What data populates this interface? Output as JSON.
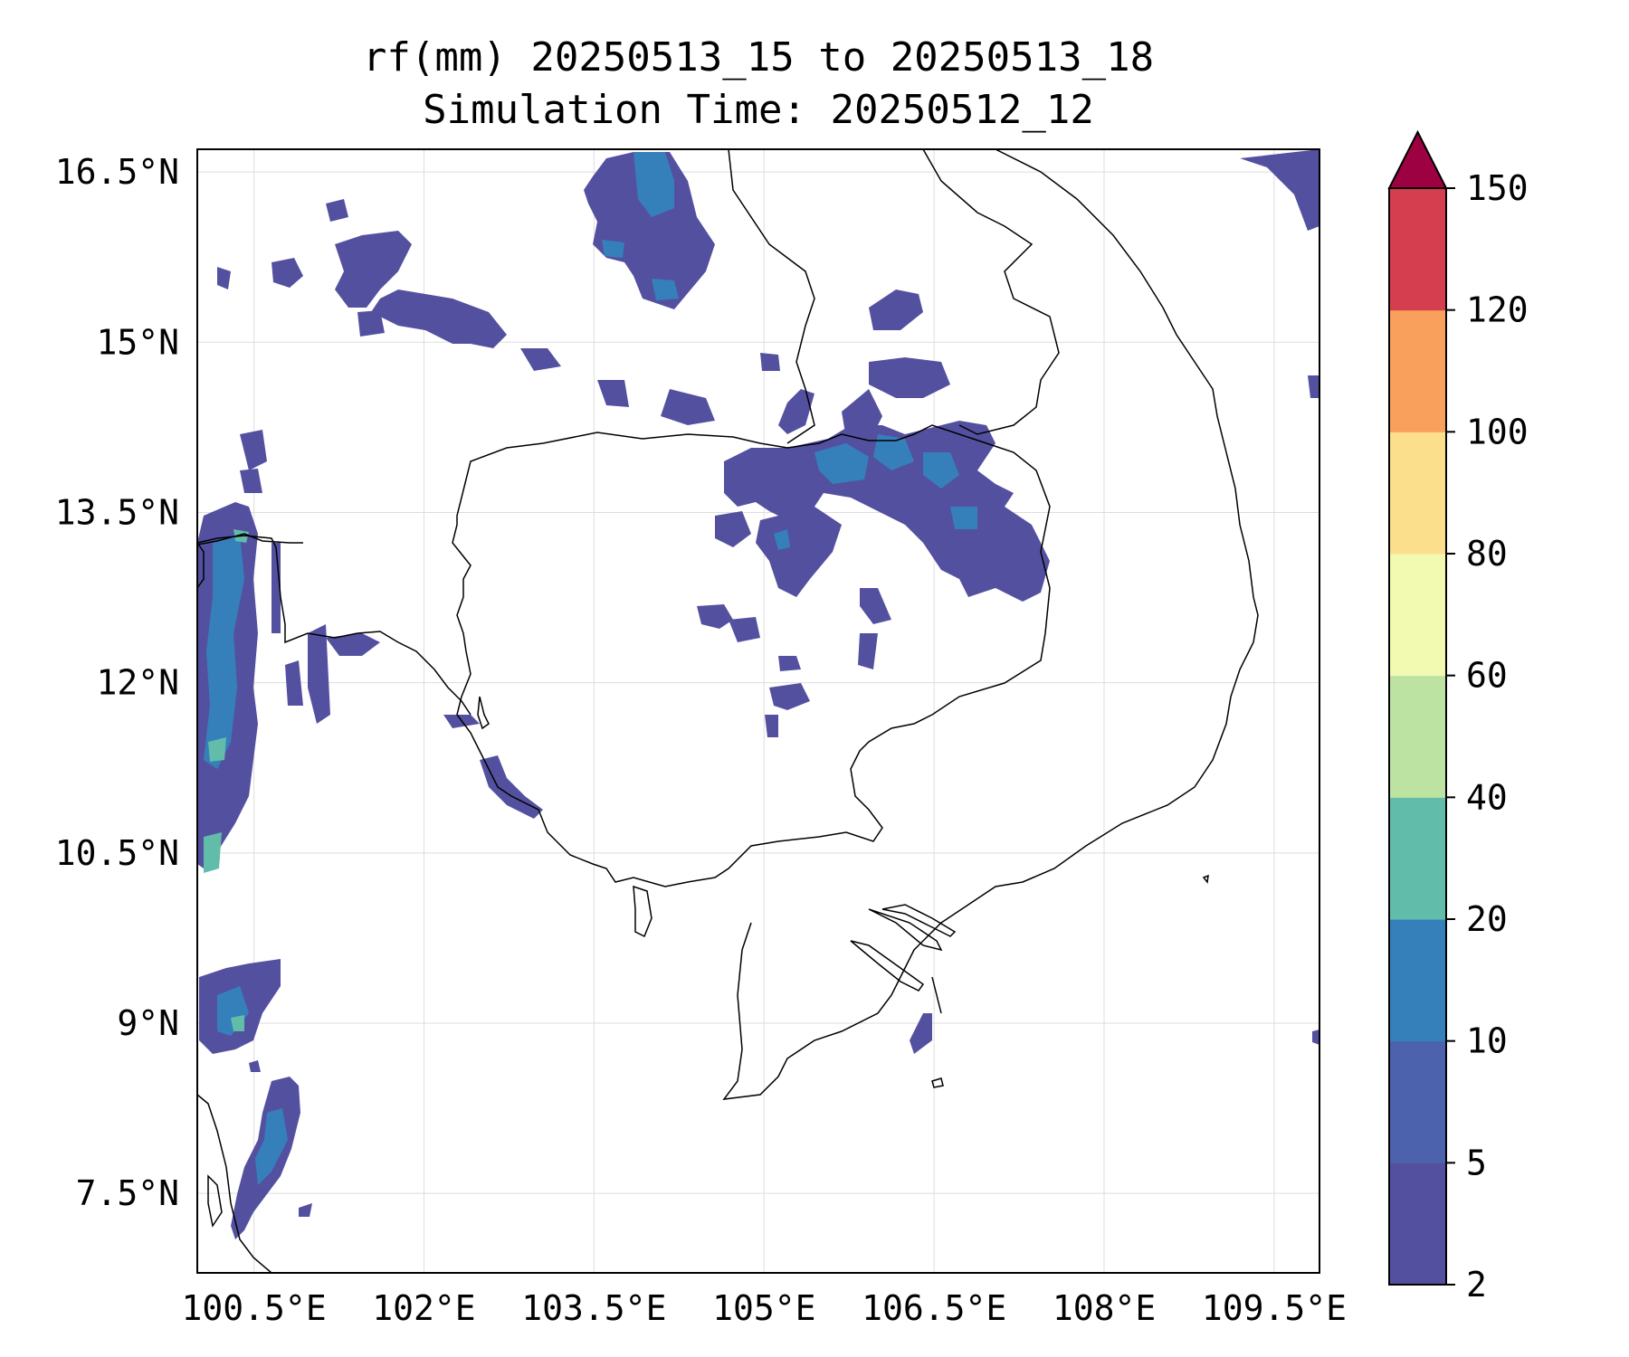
{
  "title": {
    "line1": "rf(mm) 20250513_15 to 20250513_18",
    "line2": "Simulation Time: 20250512_12"
  },
  "map": {
    "lon_range": [
      100.0,
      109.9
    ],
    "lat_range": [
      6.8,
      16.7
    ],
    "lon_ticks": [
      {
        "value": 100.5,
        "label": "100.5°E"
      },
      {
        "value": 102.0,
        "label": "102°E"
      },
      {
        "value": 103.5,
        "label": "103.5°E"
      },
      {
        "value": 105.0,
        "label": "105°E"
      },
      {
        "value": 106.5,
        "label": "106.5°E"
      },
      {
        "value": 108.0,
        "label": "108°E"
      },
      {
        "value": 109.5,
        "label": "109.5°E"
      }
    ],
    "lat_ticks": [
      {
        "value": 16.5,
        "label": "16.5°N"
      },
      {
        "value": 15.0,
        "label": "15°N"
      },
      {
        "value": 13.5,
        "label": "13.5°N"
      },
      {
        "value": 12.0,
        "label": "12°N"
      },
      {
        "value": 10.5,
        "label": "10.5°N"
      },
      {
        "value": 9.0,
        "label": "9°N"
      },
      {
        "value": 7.5,
        "label": "7.5°N"
      }
    ],
    "grid": true
  },
  "colorbar": {
    "levels": [
      2,
      5,
      10,
      20,
      40,
      60,
      80,
      100,
      120,
      150
    ],
    "tick_labels": [
      "2",
      "5",
      "10",
      "20",
      "40",
      "60",
      "80",
      "100",
      "120",
      "150"
    ],
    "colors": [
      "#5450a0",
      "#4c62ac",
      "#3580bb",
      "#62bcaa",
      "#bde3a2",
      "#f2f9b0",
      "#fbdf8d",
      "#f9a05d",
      "#d53e4e"
    ],
    "extend_color": "#9e0142",
    "extend": "max"
  },
  "colors": {
    "frame": "#000000",
    "grid": "#dddddd",
    "coastline": "#000000"
  }
}
